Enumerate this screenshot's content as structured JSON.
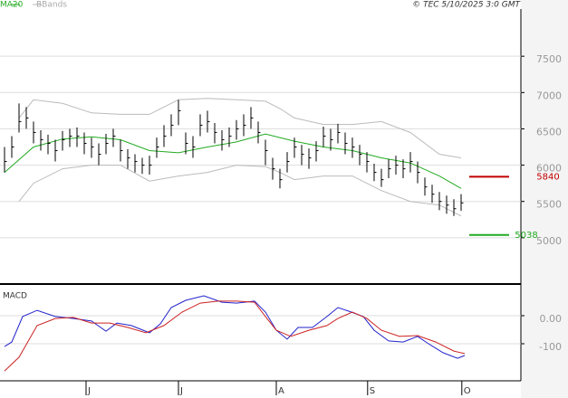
{
  "chart_data": [
    {
      "type": "ohlc",
      "timestamp": "© TEC 5/10/2025 3:0 GMT",
      "x": [
        0,
        1,
        2,
        3,
        4,
        5,
        6,
        7,
        8,
        9,
        10,
        11,
        12,
        13,
        14,
        15,
        16,
        17,
        18,
        19,
        20,
        21,
        22,
        23,
        24,
        25,
        26,
        27,
        28,
        29,
        30,
        31,
        32,
        33,
        34,
        35,
        36,
        37,
        38,
        39,
        40,
        41,
        42,
        43,
        44,
        45,
        46,
        47,
        48,
        49,
        50,
        51,
        52,
        53,
        54,
        55,
        56,
        57,
        58,
        59,
        60,
        61,
        62,
        63
      ],
      "high": [
        6250,
        6400,
        6850,
        6800,
        6600,
        6480,
        6420,
        6350,
        6470,
        6500,
        6520,
        6450,
        6380,
        6300,
        6430,
        6500,
        6350,
        6220,
        6150,
        6100,
        6130,
        6380,
        6550,
        6700,
        6900,
        6450,
        6400,
        6700,
        6750,
        6580,
        6480,
        6520,
        6620,
        6700,
        6800,
        6600,
        6350,
        6100,
        5950,
        6180,
        6380,
        6280,
        6230,
        6330,
        6530,
        6500,
        6570,
        6450,
        6380,
        6280,
        6180,
        6020,
        5950,
        6080,
        6130,
        6080,
        6180,
        6050,
        5830,
        5730,
        5630,
        5580,
        5530,
        5600
      ],
      "low": [
        5900,
        6100,
        6450,
        6500,
        6300,
        6200,
        6150,
        6050,
        6200,
        6250,
        6250,
        6150,
        6100,
        6000,
        6150,
        6250,
        6050,
        5950,
        5900,
        5880,
        5870,
        6100,
        6250,
        6400,
        6550,
        6150,
        6100,
        6400,
        6450,
        6300,
        6200,
        6250,
        6350,
        6400,
        6500,
        6300,
        6000,
        5800,
        5680,
        5900,
        6100,
        6000,
        5950,
        6050,
        6250,
        6200,
        6300,
        6150,
        6100,
        6000,
        5900,
        5780,
        5700,
        5820,
        5870,
        5820,
        5900,
        5750,
        5580,
        5480,
        5380,
        5330,
        5300,
        5370
      ],
      "close": [
        6050,
        6250,
        6600,
        6650,
        6450,
        6350,
        6300,
        6200,
        6350,
        6400,
        6400,
        6300,
        6250,
        6150,
        6300,
        6400,
        6200,
        6100,
        6050,
        6000,
        6000,
        6250,
        6400,
        6550,
        6750,
        6300,
        6250,
        6550,
        6600,
        6450,
        6350,
        6400,
        6500,
        6550,
        6650,
        6450,
        6200,
        5950,
        5800,
        6050,
        6250,
        6150,
        6100,
        6200,
        6400,
        6350,
        6450,
        6300,
        6250,
        6150,
        6050,
        5900,
        5800,
        5950,
        6000,
        5950,
        6050,
        5900,
        5700,
        5600,
        5500,
        5450,
        5400,
        5480
      ],
      "series": [
        {
          "name": "MA20",
          "color": "#22aa22",
          "x": [
            0,
            4,
            8,
            12,
            16,
            20,
            24,
            28,
            32,
            36,
            40,
            44,
            48,
            52,
            56,
            60,
            63
          ],
          "values": [
            5900,
            6250,
            6360,
            6390,
            6350,
            6200,
            6170,
            6250,
            6320,
            6430,
            6330,
            6250,
            6200,
            6100,
            6030,
            5850,
            5680
          ]
        },
        {
          "name": "BBands",
          "color": "#bbbbbb",
          "x": [
            2,
            4,
            8,
            12,
            16,
            20,
            24,
            28,
            32,
            36,
            38,
            40,
            44,
            48,
            52,
            56,
            60,
            63
          ],
          "upper": [
            6650,
            6900,
            6850,
            6720,
            6700,
            6700,
            6900,
            6920,
            6900,
            6880,
            6780,
            6650,
            6560,
            6560,
            6600,
            6450,
            6150,
            6100
          ],
          "lower": [
            5500,
            5750,
            5950,
            6000,
            6000,
            5780,
            5850,
            5900,
            6000,
            5980,
            5900,
            5800,
            5850,
            5850,
            5650,
            5500,
            5450,
            5300
          ]
        }
      ],
      "levels": [
        {
          "value": 5840,
          "color": "#c00000"
        },
        {
          "value": 5038,
          "color": "#22aa22"
        }
      ],
      "xlim": [
        -0.625,
        71.25
      ],
      "ylim": [
        4375,
        8150
      ],
      "yticks": [
        5000,
        5500,
        6000,
        6500,
        7000,
        7500
      ],
      "xticks": [
        {
          "value": 11.25,
          "label": "J"
        },
        {
          "value": 24,
          "label": "J"
        },
        {
          "value": 37.5,
          "label": "A"
        },
        {
          "value": 50.1,
          "label": "S"
        },
        {
          "value": 63.1,
          "label": "O"
        }
      ]
    },
    {
      "type": "line",
      "title": "MACD",
      "series": [
        {
          "color": "#2222cc",
          "x": [
            0,
            1,
            2.5,
            4.5,
            7,
            9.5,
            12,
            14,
            15.5,
            17.5,
            20,
            21.5,
            23,
            25,
            27.5,
            30,
            32,
            34.5,
            36,
            37.5,
            39,
            40.5,
            42.5,
            44.5,
            46,
            47.5,
            49.5,
            51,
            53,
            55,
            57,
            58.5,
            60.5,
            62.5,
            63.5
          ],
          "values": [
            -110,
            -94,
            -3,
            19,
            -3,
            -10,
            -19,
            -55,
            -26,
            -35,
            -61,
            -29,
            29,
            55,
            71,
            48,
            45,
            52,
            13,
            -52,
            -84,
            -42,
            -42,
            -3,
            29,
            16,
            -3,
            -52,
            -90,
            -94,
            -74,
            -100,
            -132,
            -152,
            -142
          ]
        },
        {
          "color": "#cc2222",
          "x": [
            0,
            2,
            4.5,
            7,
            9.5,
            12,
            14.5,
            17,
            19.5,
            22,
            24.5,
            27,
            29.5,
            32,
            34.5,
            36,
            37.5,
            39.5,
            42,
            44.5,
            46,
            48,
            50,
            52,
            54.5,
            57,
            59.5,
            62,
            63.5
          ],
          "values": [
            -197,
            -148,
            -35,
            -10,
            -6,
            -26,
            -26,
            -42,
            -61,
            -35,
            13,
            45,
            52,
            52,
            48,
            -3,
            -52,
            -74,
            -52,
            -35,
            -10,
            13,
            -10,
            -52,
            -74,
            -71,
            -94,
            -126,
            -135
          ]
        }
      ],
      "xlim": [
        -0.625,
        71.25
      ],
      "ylim": [
        -229,
        100
      ],
      "yticks": [
        {
          "value": 0,
          "label": "0.00"
        },
        -100
      ]
    }
  ]
}
